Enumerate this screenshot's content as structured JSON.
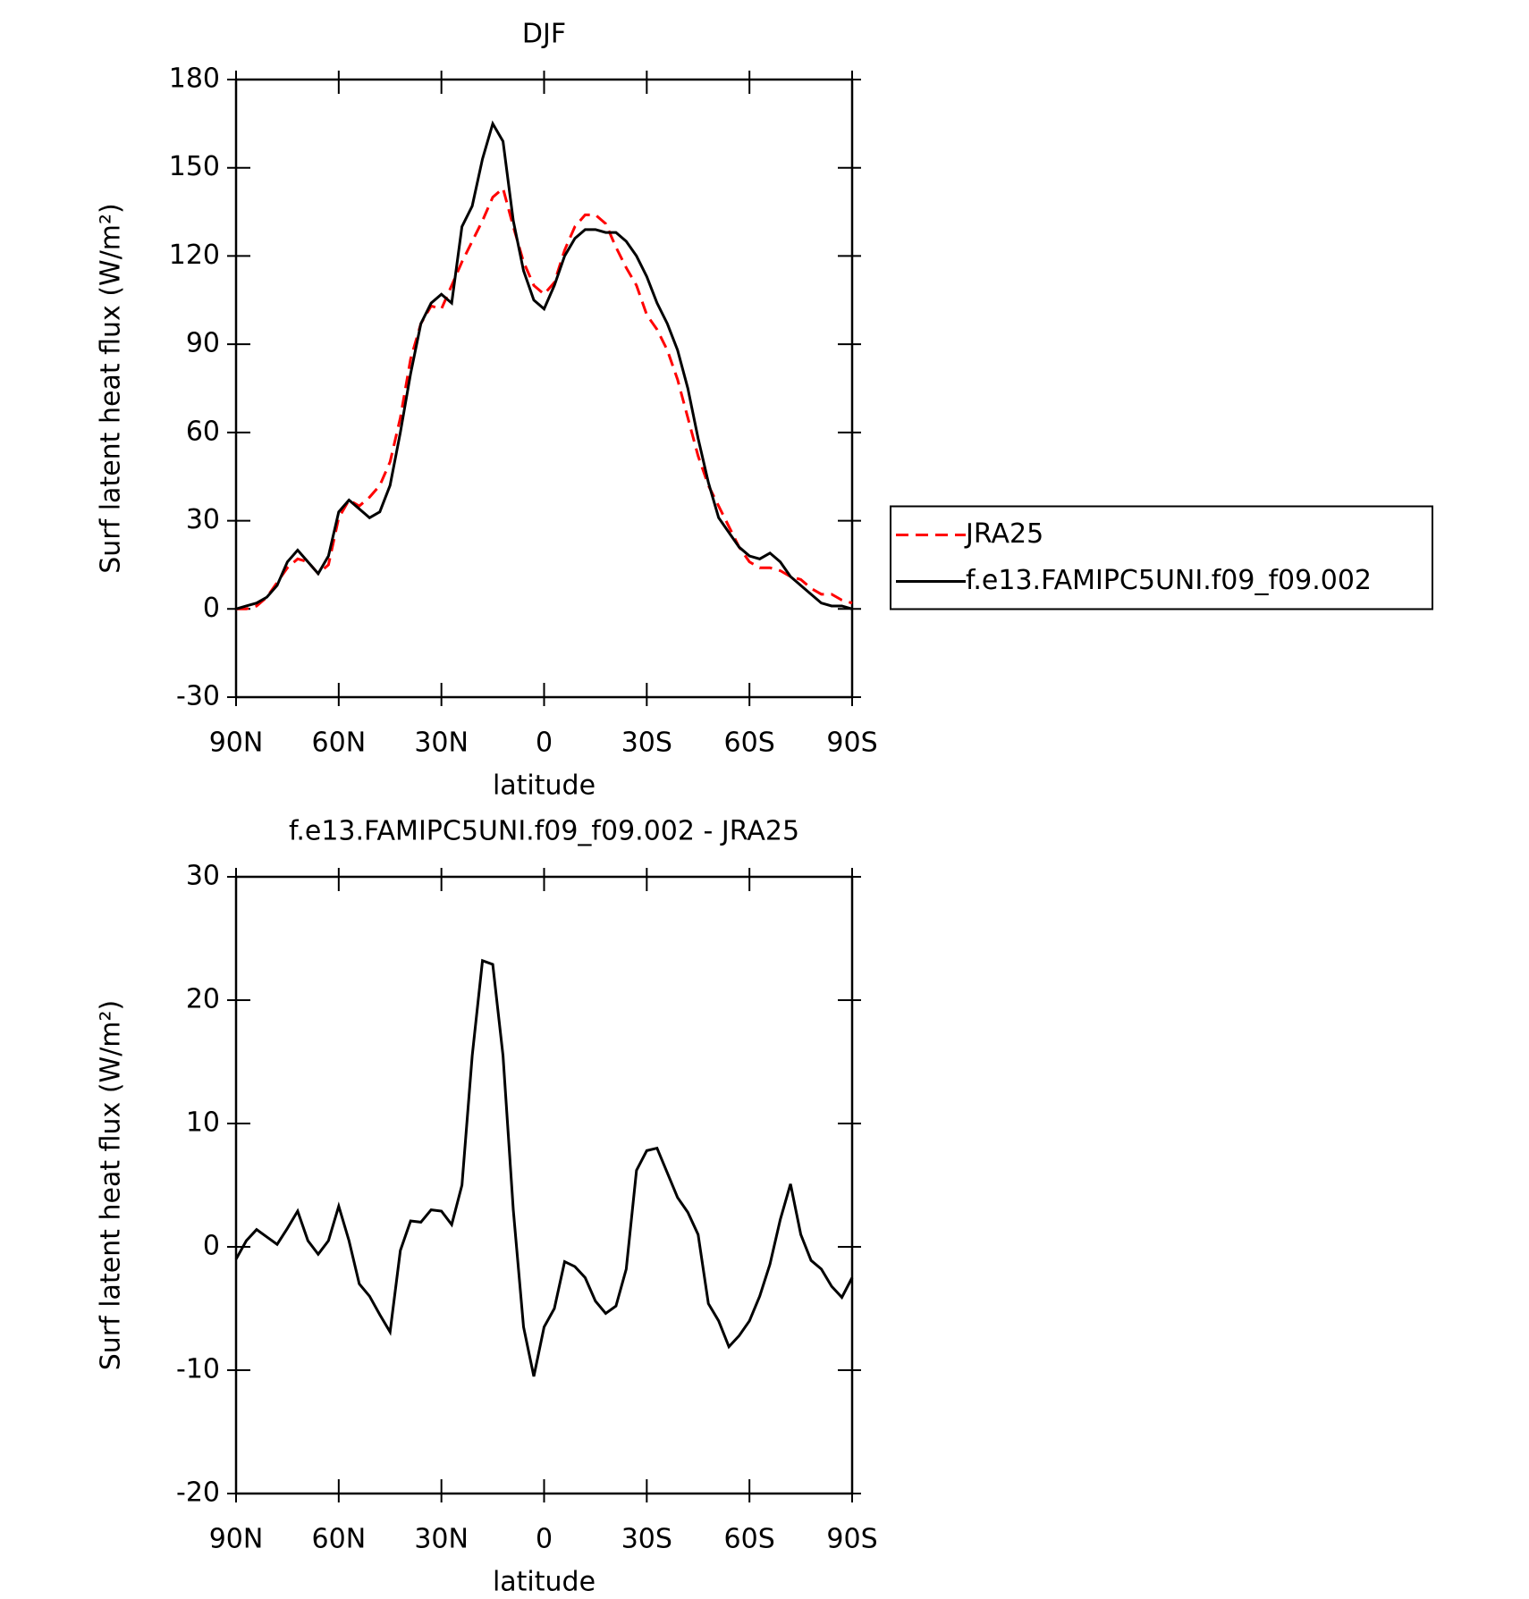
{
  "chart_data": [
    {
      "type": "line",
      "title": "DJF",
      "x_label": "latitude",
      "y_label": "Surf latent heat flux (W/m²)",
      "x": [
        90,
        87,
        84,
        81,
        78,
        75,
        72,
        69,
        66,
        63,
        60,
        57,
        54,
        51,
        48,
        45,
        42,
        39,
        36,
        33,
        30,
        27,
        24,
        21,
        18,
        15,
        12,
        9,
        6,
        3,
        0,
        -3,
        -6,
        -9,
        -12,
        -15,
        -18,
        -21,
        -24,
        -27,
        -30,
        -33,
        -36,
        -39,
        -42,
        -45,
        -48,
        -51,
        -54,
        -57,
        -60,
        -63,
        -66,
        -69,
        -72,
        -75,
        -78,
        -81,
        -84,
        -87,
        -90
      ],
      "series": [
        {
          "name": "JRA25",
          "color": "#ff0000",
          "dash": true,
          "values": [
            0,
            0,
            1,
            4,
            9,
            14,
            17,
            16,
            12,
            15,
            31,
            37,
            35,
            38,
            42,
            50,
            65,
            85,
            97,
            103,
            102,
            110,
            118,
            125,
            132,
            140,
            143,
            130,
            118,
            110,
            107,
            111,
            122,
            130,
            134,
            134,
            131,
            123,
            116,
            110,
            100,
            95,
            88,
            78,
            65,
            52,
            42,
            35,
            28,
            21,
            16,
            14,
            14,
            13,
            11,
            10,
            7,
            5,
            5,
            3,
            2
          ]
        },
        {
          "name": "f.e13.FAMIPC5UNI.f09_f09.002",
          "color": "#000000",
          "dash": false,
          "values": [
            0,
            1,
            2,
            4,
            8,
            16,
            20,
            16,
            12,
            18,
            33,
            37,
            34,
            31,
            33,
            42,
            60,
            80,
            97,
            104,
            107,
            104,
            130,
            137,
            153,
            165,
            159,
            132,
            115,
            105,
            102,
            110,
            120,
            126,
            129,
            129,
            128,
            128,
            125,
            120,
            113,
            104,
            97,
            88,
            75,
            58,
            43,
            31,
            26,
            21,
            18,
            17,
            19,
            16,
            11,
            8,
            5,
            2,
            1,
            1,
            0
          ]
        }
      ],
      "xlim": [
        90,
        -90
      ],
      "xticks": [
        {
          "value": 90,
          "label": "90N"
        },
        {
          "value": 60,
          "label": "60N"
        },
        {
          "value": 30,
          "label": "30N"
        },
        0,
        {
          "value": -30,
          "label": "30S"
        },
        {
          "value": -60,
          "label": "60S"
        },
        {
          "value": -90,
          "label": "90S"
        }
      ],
      "ylim": [
        -30,
        180
      ],
      "yticks": [
        -30,
        0,
        30,
        60,
        90,
        120,
        150,
        180
      ],
      "legend": "right"
    },
    {
      "type": "line",
      "title": "f.e13.FAMIPC5UNI.f09_f09.002 - JRA25",
      "x_label": "latitude",
      "y_label": "Surf latent heat flux (W/m²)",
      "x": [
        90,
        87,
        84,
        81,
        78,
        75,
        72,
        69,
        66,
        63,
        60,
        57,
        54,
        51,
        48,
        45,
        42,
        39,
        36,
        33,
        30,
        27,
        24,
        21,
        18,
        15,
        12,
        9,
        6,
        3,
        0,
        -3,
        -6,
        -9,
        -12,
        -15,
        -18,
        -21,
        -24,
        -27,
        -30,
        -33,
        -36,
        -39,
        -42,
        -45,
        -48,
        -51,
        -54,
        -57,
        -60,
        -63,
        -66,
        -69,
        -72,
        -75,
        -78,
        -81,
        -84,
        -87,
        -90
      ],
      "color": "#000000",
      "values": [
        -1,
        0.5,
        1.4,
        0.8,
        0.2,
        1.5,
        2.9,
        0.5,
        -0.6,
        0.5,
        3.3,
        0.5,
        -3,
        -4,
        -5.5,
        -6.9,
        -0.3,
        2.1,
        2,
        3,
        2.9,
        1.8,
        5,
        15.5,
        23.2,
        22.9,
        15.5,
        3,
        -6.5,
        -10.5,
        -6.5,
        -5,
        -1.2,
        -1.6,
        -2.5,
        -4.4,
        -5.4,
        -4.8,
        -1.8,
        6.2,
        7.8,
        8,
        6,
        4,
        2.8,
        1,
        -4.6,
        -6,
        -8.1,
        -7.2,
        -6,
        -4,
        -1.4,
        2.2,
        5.1,
        1,
        -1.1,
        -1.8,
        -3.2,
        -4.1,
        -2.5
      ],
      "xlim": [
        90,
        -90
      ],
      "xticks": [
        {
          "value": 90,
          "label": "90N"
        },
        {
          "value": 60,
          "label": "60N"
        },
        {
          "value": 30,
          "label": "30N"
        },
        0,
        {
          "value": -30,
          "label": "30S"
        },
        {
          "value": -60,
          "label": "60S"
        },
        {
          "value": -90,
          "label": "90S"
        }
      ],
      "ylim": [
        -20,
        30
      ],
      "yticks": [
        -20,
        -10,
        0,
        10,
        20,
        30
      ]
    }
  ]
}
